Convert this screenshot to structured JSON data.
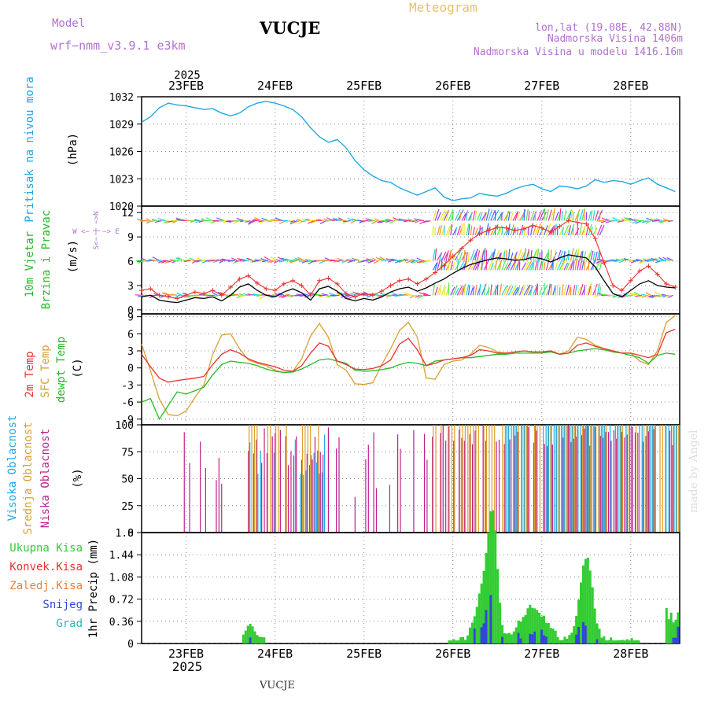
{
  "header": {
    "model_label": "Model",
    "model_name": "wrf−nmm_v3.9.1  e3km",
    "station": "VUCJE",
    "product": "Meteogram",
    "lonlat": "lon,lat (19.08E, 42.88N)",
    "elevation": "Nadmorska Visina 1406m",
    "model_elevation": "Nadmorska Visina u modelu 1416.16m",
    "footer_station": "VUCJE",
    "watermark": "made by Angel"
  },
  "colors": {
    "pressure": "#1ea8e6",
    "wind_speed": "#000000",
    "gust": "#e8322e",
    "t2m": "#e8322e",
    "tsfc": "#d9a030",
    "dewpt": "#22bb22",
    "high_cloud": "#1ea8e6",
    "mid_cloud": "#d9a030",
    "low_cloud": "#c0208a",
    "total_precip": "#33cc33",
    "conv_precip": "#e8322e",
    "frozen_precip": "#f08030",
    "snow": "#3344dd",
    "hail": "#22bbbb"
  },
  "chart_data": {
    "type": "line",
    "time_axis": {
      "year_label": "2025",
      "days": [
        "23FEB",
        "24FEB",
        "25FEB",
        "26FEB",
        "27FEB",
        "28FEB"
      ],
      "range_days": [
        -0.5,
        5.55
      ]
    },
    "panels": [
      {
        "id": "pressure",
        "type": "line",
        "ylabel_main": "Pritisak na nivou mora",
        "unit": "(hPa)",
        "ylim": [
          1020,
          1032
        ],
        "yticks": [
          1020,
          1023,
          1026,
          1029,
          1032
        ],
        "series": [
          {
            "name": "Pritisak na nivou mora",
            "x": [
              -0.5,
              -0.4,
              -0.3,
              -0.2,
              -0.1,
              0,
              0.1,
              0.2,
              0.3,
              0.4,
              0.5,
              0.6,
              0.7,
              0.8,
              0.9,
              1.0,
              1.1,
              1.2,
              1.3,
              1.4,
              1.5,
              1.6,
              1.7,
              1.8,
              1.9,
              2.0,
              2.1,
              2.2,
              2.3,
              2.4,
              2.5,
              2.6,
              2.7,
              2.8,
              2.9,
              3.0,
              3.1,
              3.2,
              3.3,
              3.4,
              3.5,
              3.6,
              3.7,
              3.8,
              3.9,
              4.0,
              4.1,
              4.2,
              4.3,
              4.4,
              4.5,
              4.6,
              4.7,
              4.8,
              4.9,
              5.0,
              5.1,
              5.2,
              5.3,
              5.4,
              5.5
            ],
            "y": [
              1029.2,
              1029.8,
              1030.8,
              1031.3,
              1031.1,
              1031.0,
              1030.8,
              1030.6,
              1030.7,
              1030.2,
              1029.9,
              1030.2,
              1030.9,
              1031.3,
              1031.5,
              1031.3,
              1031.0,
              1030.6,
              1029.8,
              1028.6,
              1027.6,
              1027.0,
              1027.3,
              1026.4,
              1025.0,
              1024.0,
              1023.3,
              1022.8,
              1022.6,
              1022.0,
              1021.6,
              1021.2,
              1021.6,
              1022.0,
              1021.0,
              1020.6,
              1020.8,
              1020.9,
              1021.4,
              1021.2,
              1021.1,
              1021.4,
              1021.9,
              1022.2,
              1022.4,
              1021.9,
              1021.6,
              1022.2,
              1022.1,
              1021.9,
              1022.2,
              1022.9,
              1022.6,
              1022.8,
              1022.7,
              1022.4,
              1022.8,
              1023.1,
              1022.4,
              1022.0,
              1021.6
            ]
          }
        ]
      },
      {
        "id": "wind",
        "type": "line",
        "ylabel_main": "10m Vjetar",
        "ylabel_sub": "Brzina i Pravac",
        "unit": "(m/s)",
        "compass_label": "W <− | −> E",
        "compass_vertical": "S<− | −>N",
        "ylim": [
          -0.5,
          12.8
        ],
        "yticks": [
          0,
          3,
          6,
          9,
          12
        ],
        "series": [
          {
            "name": "Brzina vjetra",
            "x": [
              -0.5,
              -0.4,
              -0.3,
              -0.2,
              -0.1,
              0,
              0.1,
              0.2,
              0.3,
              0.4,
              0.5,
              0.6,
              0.7,
              0.8,
              0.9,
              1.0,
              1.1,
              1.2,
              1.3,
              1.4,
              1.5,
              1.6,
              1.7,
              1.8,
              1.9,
              2.0,
              2.1,
              2.2,
              2.3,
              2.4,
              2.5,
              2.6,
              2.7,
              2.8,
              2.9,
              3.0,
              3.1,
              3.2,
              3.3,
              3.4,
              3.5,
              3.6,
              3.7,
              3.8,
              3.9,
              4.0,
              4.1,
              4.2,
              4.3,
              4.4,
              4.5,
              4.6,
              4.7,
              4.8,
              4.9,
              5.0,
              5.1,
              5.2,
              5.3,
              5.4,
              5.5
            ],
            "y": [
              1.6,
              1.8,
              1.2,
              1.0,
              0.9,
              1.2,
              1.5,
              1.4,
              1.6,
              1.1,
              1.8,
              2.8,
              3.2,
              2.4,
              1.8,
              1.6,
              2.2,
              2.6,
              2.1,
              1.2,
              2.6,
              2.9,
              2.3,
              1.4,
              1.1,
              1.4,
              1.2,
              1.6,
              2.2,
              2.6,
              2.8,
              2.3,
              2.7,
              3.3,
              3.8,
              4.5,
              5.1,
              5.6,
              5.9,
              6.2,
              6.4,
              6.3,
              6.1,
              6.2,
              6.5,
              6.3,
              5.9,
              6.4,
              6.8,
              6.6,
              6.4,
              5.3,
              3.6,
              2.0,
              1.6,
              2.4,
              3.2,
              3.6,
              3.0,
              2.8,
              2.7
            ]
          },
          {
            "name": "Udari vjetra",
            "x": [
              -0.5,
              -0.4,
              -0.3,
              -0.2,
              -0.1,
              0,
              0.1,
              0.2,
              0.3,
              0.4,
              0.5,
              0.6,
              0.7,
              0.8,
              0.9,
              1.0,
              1.1,
              1.2,
              1.3,
              1.4,
              1.5,
              1.6,
              1.7,
              1.8,
              1.9,
              2.0,
              2.1,
              2.2,
              2.3,
              2.4,
              2.5,
              2.6,
              2.7,
              2.8,
              2.9,
              3.0,
              3.1,
              3.2,
              3.3,
              3.4,
              3.5,
              3.6,
              3.7,
              3.8,
              3.9,
              4.0,
              4.1,
              4.2,
              4.3,
              4.4,
              4.5,
              4.6,
              4.7,
              4.8,
              4.9,
              5.0,
              5.1,
              5.2,
              5.3,
              5.4,
              5.5
            ],
            "y": [
              2.4,
              2.6,
              1.8,
              1.6,
              1.4,
              1.8,
              2.2,
              2.0,
              2.4,
              1.8,
              2.8,
              3.8,
              4.2,
              3.3,
              2.6,
              2.4,
              3.2,
              3.6,
              3.0,
              1.8,
              3.6,
              3.9,
              3.2,
              2.0,
              1.6,
              2.0,
              1.8,
              2.3,
              3.0,
              3.6,
              3.8,
              3.2,
              3.8,
              4.6,
              5.5,
              6.6,
              7.6,
              8.6,
              9.4,
              9.8,
              10.2,
              10.1,
              9.8,
              10.0,
              10.4,
              10.1,
              9.6,
              10.3,
              11.0,
              10.8,
              10.6,
              8.8,
              5.8,
              3.0,
              2.4,
              3.6,
              4.8,
              5.4,
              4.4,
              3.2,
              2.8
            ]
          }
        ]
      },
      {
        "id": "temperature",
        "type": "line",
        "ylabel_t2m": "2m Temp",
        "ylabel_tsfc": "SFC Temp",
        "ylabel_dewpt": "dewpt Temp",
        "unit": "(C)",
        "ylim": [
          -10,
          9.5
        ],
        "yticks": [
          -9,
          -6,
          -3,
          0,
          3,
          6,
          9
        ],
        "series": [
          {
            "name": "2m Temp",
            "x": [
              -0.5,
              -0.4,
              -0.3,
              -0.2,
              -0.1,
              0,
              0.1,
              0.2,
              0.3,
              0.4,
              0.5,
              0.6,
              0.7,
              0.8,
              0.9,
              1.0,
              1.1,
              1.2,
              1.3,
              1.4,
              1.5,
              1.6,
              1.7,
              1.8,
              1.9,
              2.0,
              2.1,
              2.2,
              2.3,
              2.4,
              2.5,
              2.6,
              2.7,
              2.8,
              2.9,
              3.0,
              3.1,
              3.2,
              3.3,
              3.4,
              3.5,
              3.6,
              3.7,
              3.8,
              3.9,
              4.0,
              4.1,
              4.2,
              4.3,
              4.4,
              4.5,
              4.6,
              4.7,
              4.8,
              4.9,
              5.0,
              5.1,
              5.2,
              5.3,
              5.4,
              5.5
            ],
            "y": [
              2.4,
              0.2,
              -1.8,
              -2.5,
              -2.2,
              -2.0,
              -1.8,
              -1.5,
              0.6,
              2.4,
              3.2,
              2.6,
              1.6,
              1.0,
              0.6,
              0.2,
              -0.4,
              -0.6,
              0.4,
              2.6,
              4.4,
              3.8,
              1.2,
              0.6,
              -0.2,
              -0.3,
              -0.1,
              0.4,
              1.4,
              4.2,
              5.2,
              3.2,
              0.4,
              0.8,
              1.4,
              1.6,
              1.8,
              2.2,
              3.2,
              3.0,
              2.6,
              2.6,
              2.8,
              3.0,
              2.8,
              2.8,
              3.0,
              2.4,
              2.6,
              4.0,
              4.4,
              3.8,
              3.4,
              3.0,
              2.6,
              2.6,
              2.2,
              1.8,
              2.4,
              6.2,
              6.8
            ]
          },
          {
            "name": "SFC Temp",
            "x": [
              -0.5,
              -0.4,
              -0.3,
              -0.2,
              -0.1,
              0,
              0.1,
              0.2,
              0.3,
              0.4,
              0.5,
              0.6,
              0.7,
              0.8,
              0.9,
              1.0,
              1.1,
              1.2,
              1.3,
              1.4,
              1.5,
              1.6,
              1.7,
              1.8,
              1.9,
              2.0,
              2.1,
              2.2,
              2.3,
              2.4,
              2.5,
              2.6,
              2.7,
              2.8,
              2.9,
              3.0,
              3.1,
              3.2,
              3.3,
              3.4,
              3.5,
              3.6,
              3.7,
              3.8,
              3.9,
              4.0,
              4.1,
              4.2,
              4.3,
              4.4,
              4.5,
              4.6,
              4.7,
              4.8,
              4.9,
              5.0,
              5.1,
              5.2,
              5.3,
              5.4,
              5.5
            ],
            "y": [
              4.2,
              -0.5,
              -5.5,
              -8.2,
              -8.4,
              -7.6,
              -5.2,
              -3.0,
              2.4,
              5.8,
              6.0,
              3.4,
              1.4,
              0.8,
              0.4,
              -0.4,
              -0.8,
              -0.6,
              1.6,
              5.6,
              7.8,
              5.4,
              0.6,
              -0.4,
              -2.8,
              -2.9,
              -2.6,
              0.6,
              3.4,
              6.6,
              8.0,
              5.4,
              -1.8,
              -2.0,
              0.6,
              1.2,
              1.4,
              2.4,
              4.0,
              3.6,
              2.8,
              2.6,
              2.8,
              3.0,
              2.8,
              2.8,
              3.0,
              2.4,
              3.0,
              5.4,
              5.0,
              4.0,
              3.4,
              3.0,
              2.6,
              2.6,
              1.2,
              0.6,
              3.0,
              8.0,
              9.2
            ]
          },
          {
            "name": "dewpt Temp",
            "x": [
              -0.5,
              -0.4,
              -0.3,
              -0.2,
              -0.1,
              0,
              0.1,
              0.2,
              0.3,
              0.4,
              0.5,
              0.6,
              0.7,
              0.8,
              0.9,
              1.0,
              1.1,
              1.2,
              1.3,
              1.4,
              1.5,
              1.6,
              1.7,
              1.8,
              1.9,
              2.0,
              2.1,
              2.2,
              2.3,
              2.4,
              2.5,
              2.6,
              2.7,
              2.8,
              2.9,
              3.0,
              3.1,
              3.2,
              3.3,
              3.4,
              3.5,
              3.6,
              3.7,
              3.8,
              3.9,
              4.0,
              4.1,
              4.2,
              4.3,
              4.4,
              4.5,
              4.6,
              4.7,
              4.8,
              4.9,
              5.0,
              5.1,
              5.2,
              5.3,
              5.4,
              5.5
            ],
            "y": [
              -6.0,
              -5.4,
              -9.0,
              -6.6,
              -4.2,
              -4.6,
              -4.0,
              -3.4,
              -1.2,
              0.6,
              1.2,
              1.0,
              0.8,
              0.4,
              -0.2,
              -0.6,
              -0.8,
              -0.7,
              -0.2,
              0.6,
              1.4,
              1.6,
              1.2,
              0.8,
              -0.4,
              -0.6,
              -0.5,
              -0.3,
              0.0,
              0.6,
              1.0,
              0.8,
              0.4,
              1.2,
              1.4,
              1.6,
              1.8,
              1.8,
              2.0,
              2.2,
              2.4,
              2.4,
              2.6,
              2.6,
              2.6,
              2.6,
              2.8,
              2.4,
              2.6,
              3.0,
              3.2,
              3.4,
              3.2,
              2.8,
              2.6,
              2.2,
              1.8,
              0.8,
              2.2,
              2.6,
              2.4
            ]
          }
        ]
      },
      {
        "id": "cloud",
        "type": "bar",
        "ylabel_high": "Visoka Oblacnost",
        "ylabel_mid": "Srednja Oblacnost",
        "ylabel_low": "Niska Oblacnost",
        "unit": "(%)",
        "ylim": [
          0,
          100
        ],
        "yticks": [
          0,
          25,
          50,
          75,
          100
        ]
      },
      {
        "id": "precip",
        "type": "bar",
        "ylabel": "1hr Precip (mm)",
        "ylim": [
          0,
          1.8
        ],
        "yticks": [
          0,
          0.36,
          0.72,
          1.08,
          1.44,
          1.8
        ],
        "legend": [
          "Ukupna Kisa",
          "Konvek.Kisa",
          "Zaledj.Kisa",
          "Snijeg",
          "Grad"
        ]
      }
    ]
  }
}
